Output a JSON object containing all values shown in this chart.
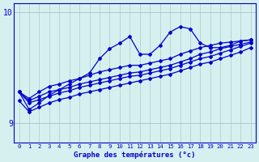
{
  "xlabel": "Graphe des températures (°c)",
  "background_color": "#d6f0f0",
  "line_color": "#0000cc",
  "grid_color": "#aacccc",
  "x_hours": [
    0,
    1,
    2,
    3,
    4,
    5,
    6,
    7,
    8,
    9,
    10,
    11,
    12,
    13,
    14,
    15,
    16,
    17,
    18,
    19,
    20,
    21,
    22,
    23
  ],
  "line_peak": [
    9.28,
    9.12,
    9.18,
    9.25,
    9.3,
    9.35,
    9.4,
    9.45,
    9.58,
    9.67,
    9.72,
    9.78,
    9.62,
    9.62,
    9.7,
    9.82,
    9.87,
    9.85,
    9.72,
    9.68,
    9.68,
    9.7,
    9.74,
    9.75
  ],
  "line_top": [
    9.28,
    9.22,
    9.28,
    9.33,
    9.35,
    9.38,
    9.4,
    9.43,
    9.46,
    9.48,
    9.5,
    9.52,
    9.52,
    9.54,
    9.56,
    9.58,
    9.62,
    9.65,
    9.68,
    9.7,
    9.72,
    9.73,
    9.74,
    9.75
  ],
  "line_mid1": [
    9.28,
    9.2,
    9.24,
    9.28,
    9.3,
    9.32,
    9.35,
    9.37,
    9.39,
    9.41,
    9.43,
    9.45,
    9.46,
    9.48,
    9.5,
    9.52,
    9.55,
    9.58,
    9.62,
    9.64,
    9.67,
    9.69,
    9.71,
    9.73
  ],
  "line_mid2": [
    9.28,
    9.18,
    9.21,
    9.24,
    9.27,
    9.29,
    9.32,
    9.34,
    9.36,
    9.38,
    9.4,
    9.42,
    9.43,
    9.45,
    9.47,
    9.49,
    9.52,
    9.55,
    9.58,
    9.6,
    9.63,
    9.66,
    9.69,
    9.72
  ],
  "line_bot": [
    9.2,
    9.1,
    9.14,
    9.18,
    9.21,
    9.23,
    9.26,
    9.28,
    9.3,
    9.32,
    9.34,
    9.36,
    9.38,
    9.4,
    9.42,
    9.44,
    9.47,
    9.5,
    9.53,
    9.55,
    9.58,
    9.61,
    9.64,
    9.68
  ],
  "ylim": [
    8.82,
    10.08
  ],
  "yticks": [
    9.0,
    10.0
  ],
  "ytick_labels": [
    "9",
    "10"
  ]
}
